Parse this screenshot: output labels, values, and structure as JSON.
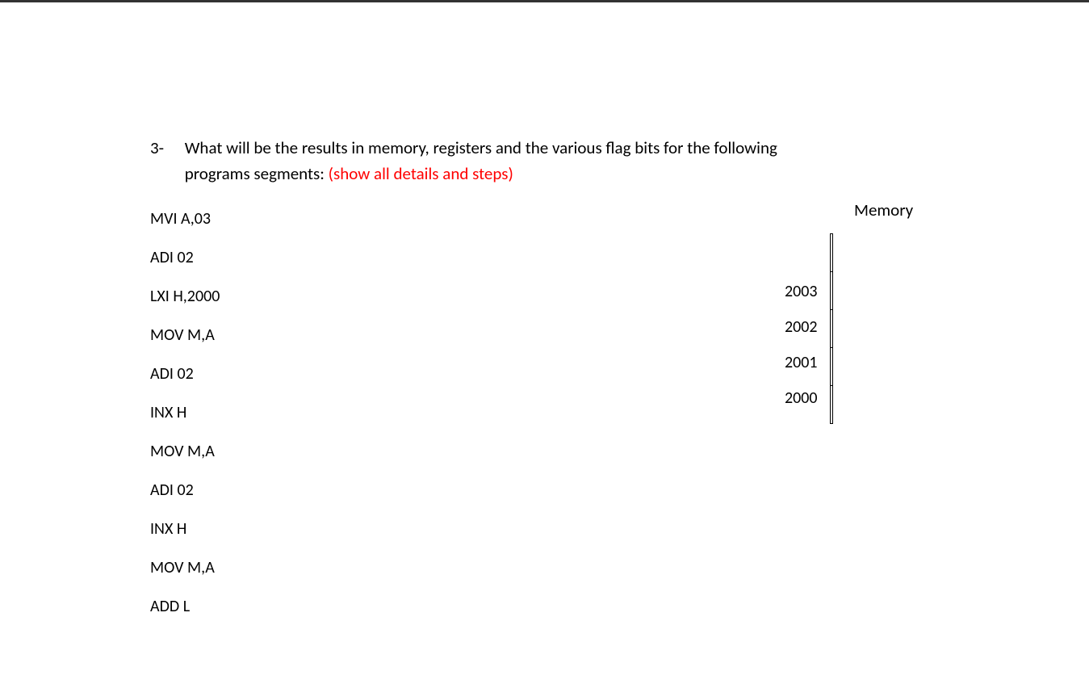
{
  "document": {
    "question_number": "3-",
    "question_text_line1": "What will be the results in memory, registers and the various flag bits for the following",
    "question_text_line2": "programs segments: ",
    "question_red_text": "(show all details and steps)",
    "code_lines": [
      "MVI  A,03",
      "ADI  02",
      "LXI  H,2000",
      "MOV  M,A",
      "ADI  02",
      "INX  H",
      "MOV  M,A",
      "ADI  02",
      "INX  H",
      "MOV  M,A",
      "ADD  L"
    ],
    "memory_title": "Memory",
    "memory_addresses": [
      "2003",
      "2002",
      "2001",
      "2000"
    ],
    "memory_cells_count": 5
  },
  "style": {
    "text_color": "#000000",
    "red_color": "#ff0000",
    "background_color": "#ffffff",
    "border_color": "#000000",
    "top_rule_color": "#333333",
    "font_family": "Calibri, Arial, sans-serif",
    "question_fontsize": 21,
    "code_fontsize": 20,
    "memory_cell_width": 148,
    "memory_cell_height": 44
  }
}
